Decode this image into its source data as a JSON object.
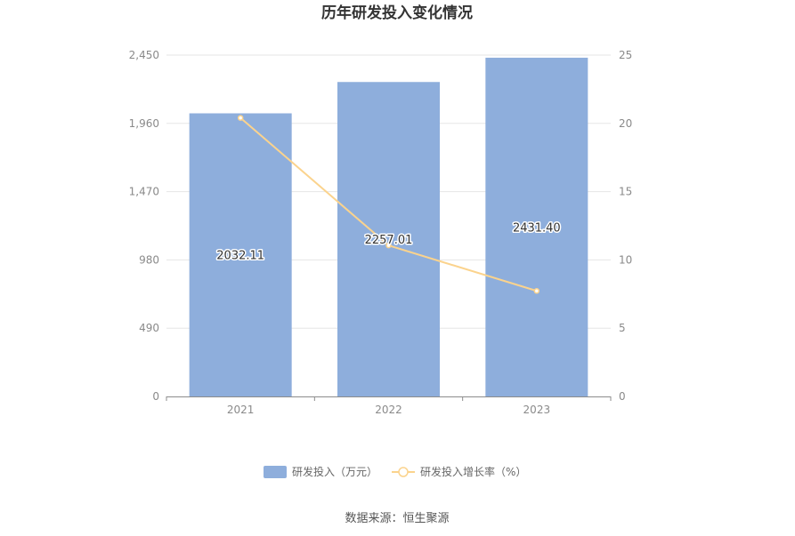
{
  "chart_data": {
    "type": "bar",
    "title": "历年研发投入变化情况",
    "categories": [
      "2021",
      "2022",
      "2023"
    ],
    "series": [
      {
        "name": "研发投入（万元）",
        "type": "bar",
        "axis": "left",
        "color": "#8eaedc",
        "values": [
          2032.11,
          2257.01,
          2431.4
        ],
        "labels": [
          "2032.11",
          "2257.01",
          "2431.40"
        ]
      },
      {
        "name": "研发投入增长率（%）",
        "type": "line",
        "axis": "right",
        "color": "#fbd38d",
        "values": [
          20.4,
          11.06,
          7.73
        ]
      }
    ],
    "y_left": {
      "min": 0,
      "max": 2450,
      "ticks": [
        "0",
        "490",
        "980",
        "1,470",
        "1,960",
        "2,450"
      ]
    },
    "y_right": {
      "min": 0,
      "max": 25,
      "ticks": [
        "0",
        "5",
        "10",
        "15",
        "20",
        "25"
      ]
    },
    "grid": true,
    "legend": "bottom"
  },
  "footer": {
    "source": "数据来源：恒生聚源"
  }
}
